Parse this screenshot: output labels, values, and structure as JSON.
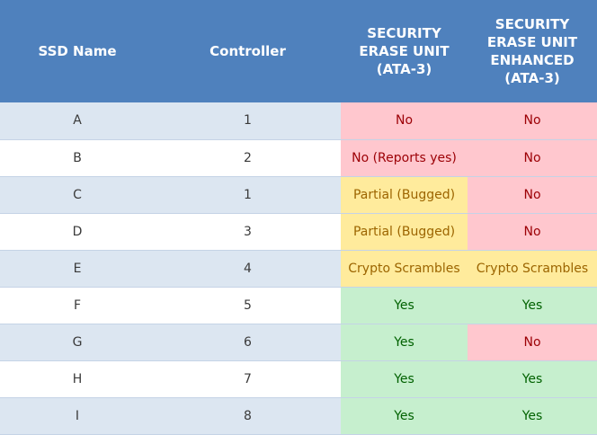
{
  "table": {
    "headers": [
      {
        "lines": [
          "SSD Name"
        ]
      },
      {
        "lines": [
          "Controller"
        ]
      },
      {
        "lines": [
          "SECURITY",
          "ERASE UNIT",
          "(ATA-3)"
        ]
      },
      {
        "lines": [
          "SECURITY",
          "ERASE UNIT",
          "ENHANCED",
          "(ATA-3)"
        ]
      }
    ],
    "rows": [
      {
        "name": "A",
        "controller": "1",
        "erase": "No",
        "erase_status": "red",
        "enhanced": "No",
        "enhanced_status": "red"
      },
      {
        "name": "B",
        "controller": "2",
        "erase": "No (Reports yes)",
        "erase_status": "red",
        "enhanced": "No",
        "enhanced_status": "red"
      },
      {
        "name": "C",
        "controller": "1",
        "erase": "Partial (Bugged)",
        "erase_status": "yellow",
        "enhanced": "No",
        "enhanced_status": "red"
      },
      {
        "name": "D",
        "controller": "3",
        "erase": "Partial (Bugged)",
        "erase_status": "yellow",
        "enhanced": "No",
        "enhanced_status": "red"
      },
      {
        "name": "E",
        "controller": "4",
        "erase": "Crypto Scrambles",
        "erase_status": "yellow",
        "enhanced": "Crypto Scrambles",
        "enhanced_status": "yellow"
      },
      {
        "name": "F",
        "controller": "5",
        "erase": "Yes",
        "erase_status": "green",
        "enhanced": "Yes",
        "enhanced_status": "green"
      },
      {
        "name": "G",
        "controller": "6",
        "erase": "Yes",
        "erase_status": "green",
        "enhanced": "No",
        "enhanced_status": "red"
      },
      {
        "name": "H",
        "controller": "7",
        "erase": "Yes",
        "erase_status": "green",
        "enhanced": "Yes",
        "enhanced_status": "green"
      },
      {
        "name": "I",
        "controller": "8",
        "erase": "Yes",
        "erase_status": "green",
        "enhanced": "Yes",
        "enhanced_status": "green"
      }
    ]
  },
  "colors": {
    "header_bg": "#4f81bd",
    "row_band": "#dce6f1",
    "red_bg": "#ffc7ce",
    "red_text": "#9c0006",
    "yellow_bg": "#ffeb9c",
    "yellow_text": "#9c6500",
    "green_bg": "#c6efce",
    "green_text": "#006100"
  }
}
